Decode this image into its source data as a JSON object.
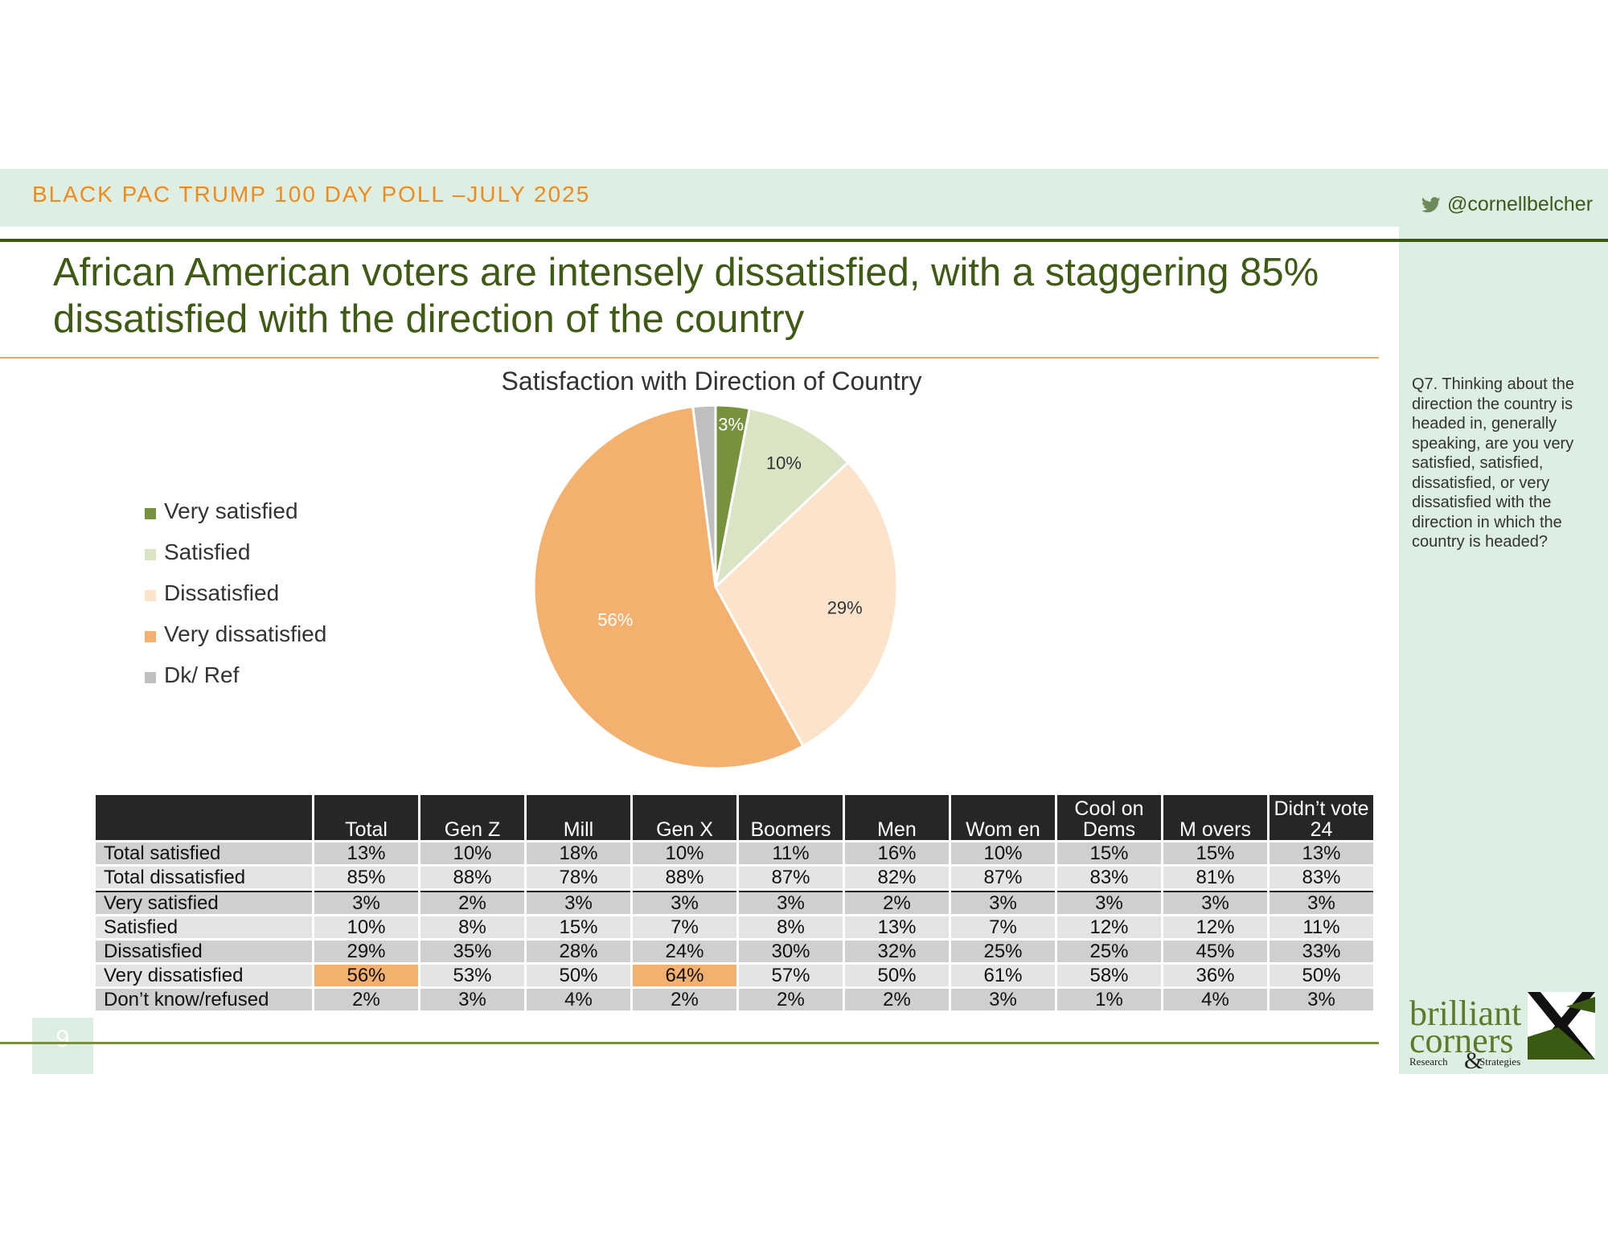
{
  "header": {
    "title": "BLACK PAC TRUMP 100 DAY POLL –JULY 2025",
    "twitter_handle": "@cornellbelcher"
  },
  "headline": "African American voters are intensely dissatisfied, with a staggering 85% dissatisfied with the direction of the country",
  "question": "Q7. Thinking about the direction the country is headed in, generally speaking, are you very satisfied, satisfied, dissatisfied, or very dissatisfied with the direction in which the country is headed?",
  "page_number": "9",
  "logo": {
    "line1": "brilliant",
    "line2": "corners",
    "left": "Research",
    "amp": "&",
    "right": "Strategies"
  },
  "chart_data": {
    "type": "pie",
    "title": "Satisfaction with Direction of Country",
    "legend_position": "left",
    "slices": [
      {
        "label": "Very satisfied",
        "value": 3,
        "value_label": "3%",
        "color": "#77923d"
      },
      {
        "label": "Satisfied",
        "value": 10,
        "value_label": "10%",
        "color": "#d9e4c4"
      },
      {
        "label": "Dissatisfied",
        "value": 29,
        "value_label": "29%",
        "color": "#fbe3cc"
      },
      {
        "label": "Very dissatisfied",
        "value": 56,
        "value_label": "56%",
        "color": "#f3b06e"
      },
      {
        "label": "Dk/ Ref",
        "value": 2,
        "value_label": "",
        "color": "#bfbfbf"
      }
    ]
  },
  "table": {
    "columns": [
      "Total",
      "Gen Z",
      "Mill",
      "Gen X",
      "Boomers",
      "Men",
      "Wom en",
      "Cool on Dems",
      "M overs",
      "Didn’t vote 24"
    ],
    "rows": [
      {
        "label": "Total satisfied",
        "values": [
          "13%",
          "10%",
          "18%",
          "10%",
          "11%",
          "16%",
          "10%",
          "15%",
          "15%",
          "13%"
        ]
      },
      {
        "label": "Total dissatisfied",
        "values": [
          "85%",
          "88%",
          "78%",
          "88%",
          "87%",
          "82%",
          "87%",
          "83%",
          "81%",
          "83%"
        ]
      },
      {
        "label": "Very satisfied",
        "values": [
          "3%",
          "2%",
          "3%",
          "3%",
          "3%",
          "2%",
          "3%",
          "3%",
          "3%",
          "3%"
        ]
      },
      {
        "label": "Satisfied",
        "values": [
          "10%",
          "8%",
          "15%",
          "7%",
          "8%",
          "13%",
          "7%",
          "12%",
          "12%",
          "11%"
        ]
      },
      {
        "label": "Dissatisfied",
        "values": [
          "29%",
          "35%",
          "28%",
          "24%",
          "30%",
          "32%",
          "25%",
          "25%",
          "45%",
          "33%"
        ]
      },
      {
        "label": "Very dissatisfied",
        "values": [
          "56%",
          "53%",
          "50%",
          "64%",
          "57%",
          "50%",
          "61%",
          "58%",
          "36%",
          "50%"
        ]
      },
      {
        "label": "Don’t know/refused",
        "values": [
          "2%",
          "3%",
          "4%",
          "2%",
          "2%",
          "2%",
          "3%",
          "1%",
          "4%",
          "3%"
        ]
      }
    ],
    "highlight_color": "#f3b06e"
  }
}
